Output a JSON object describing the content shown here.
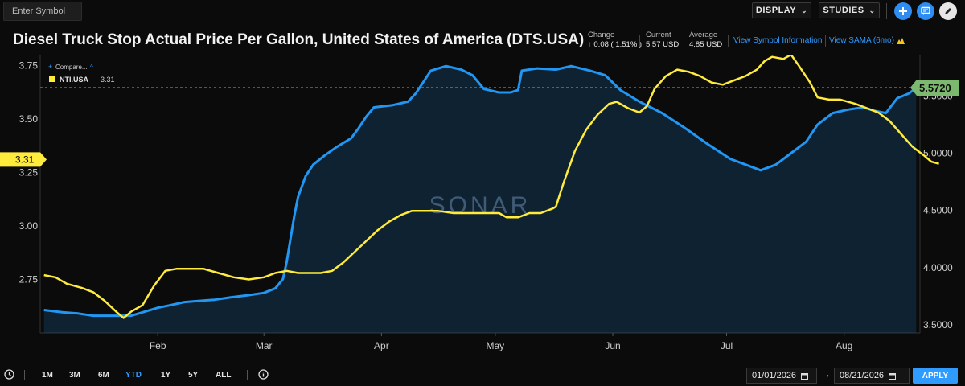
{
  "toolbar": {
    "symbol_placeholder": "Enter Symbol",
    "display_label": "DISPLAY",
    "studies_label": "STUDIES"
  },
  "header": {
    "title": "Diesel Truck Stop Actual Price Per Gallon, United States of America (DTS.USA)",
    "change_label": "Change",
    "change_value": "0.08 ( 1.51% )",
    "current_label": "Current",
    "current_value": "5.57 USD",
    "average_label": "Average",
    "average_value": "4.85 USD",
    "link_symbol_info": "View Symbol Information",
    "link_sama": "View SAMA (6mo)"
  },
  "legend": {
    "compare_label": "Compare...",
    "series_name": "NTI.USA",
    "series_value": "3.31"
  },
  "watermark": "SONAR",
  "bottom": {
    "ranges": [
      "1M",
      "3M",
      "6M",
      "YTD",
      "1Y",
      "5Y",
      "ALL"
    ],
    "active_range": "YTD",
    "start_date": "01/01/2026",
    "end_date": "08/21/2026",
    "arrow": "→",
    "apply_label": "APPLY"
  },
  "colors": {
    "primary_series": "#2196f3",
    "compare_series": "#ffeb3b",
    "current_badge": "#7cb96f",
    "accent": "#2f9bff"
  },
  "chart_data": {
    "type": "line",
    "x_labels": [
      "Feb",
      "Mar",
      "Apr",
      "May",
      "Jun",
      "Jul",
      "Aug"
    ],
    "x_label_days": [
      31,
      59,
      90,
      120,
      151,
      181,
      212
    ],
    "xlim_days": [
      0,
      232
    ],
    "left_axis": {
      "ticks": [
        "2.75",
        "3.00",
        "3.25",
        "3.50",
        "3.75"
      ],
      "ylim": [
        2.5,
        3.8
      ]
    },
    "right_axis": {
      "ticks": [
        "3.5000",
        "4.0000",
        "4.5000",
        "5.0000",
        "5.5000"
      ],
      "ylim": [
        3.43,
        5.86
      ]
    },
    "grid": false,
    "current_marker": {
      "value": 5.572,
      "label": "5.5720"
    },
    "compare_marker": {
      "value": 3.31,
      "label": "3.31"
    },
    "series": [
      {
        "name": "DTS.USA",
        "axis": "right",
        "style": "area",
        "points": [
          [
            1,
            3.63
          ],
          [
            6,
            3.61
          ],
          [
            10,
            3.6
          ],
          [
            14,
            3.58
          ],
          [
            18,
            3.58
          ],
          [
            24,
            3.58
          ],
          [
            28,
            3.62
          ],
          [
            31,
            3.65
          ],
          [
            34,
            3.67
          ],
          [
            38,
            3.7
          ],
          [
            42,
            3.71
          ],
          [
            46,
            3.72
          ],
          [
            50,
            3.74
          ],
          [
            55,
            3.76
          ],
          [
            59,
            3.78
          ],
          [
            62,
            3.82
          ],
          [
            64,
            3.9
          ],
          [
            65,
            4.05
          ],
          [
            66,
            4.25
          ],
          [
            67,
            4.45
          ],
          [
            68,
            4.62
          ],
          [
            70,
            4.8
          ],
          [
            72,
            4.9
          ],
          [
            75,
            4.98
          ],
          [
            78,
            5.05
          ],
          [
            82,
            5.13
          ],
          [
            84,
            5.22
          ],
          [
            86,
            5.32
          ],
          [
            88,
            5.4
          ],
          [
            93,
            5.42
          ],
          [
            97,
            5.45
          ],
          [
            99,
            5.52
          ],
          [
            101,
            5.62
          ],
          [
            103,
            5.72
          ],
          [
            107,
            5.76
          ],
          [
            111,
            5.73
          ],
          [
            114,
            5.68
          ],
          [
            117,
            5.56
          ],
          [
            121,
            5.53
          ],
          [
            124,
            5.53
          ],
          [
            126,
            5.55
          ],
          [
            127,
            5.72
          ],
          [
            131,
            5.74
          ],
          [
            136,
            5.73
          ],
          [
            140,
            5.76
          ],
          [
            145,
            5.72
          ],
          [
            149,
            5.68
          ],
          [
            153,
            5.55
          ],
          [
            158,
            5.45
          ],
          [
            164,
            5.35
          ],
          [
            170,
            5.22
          ],
          [
            176,
            5.08
          ],
          [
            182,
            4.95
          ],
          [
            186,
            4.9
          ],
          [
            190,
            4.85
          ],
          [
            194,
            4.9
          ],
          [
            198,
            5.0
          ],
          [
            202,
            5.1
          ],
          [
            205,
            5.25
          ],
          [
            209,
            5.35
          ],
          [
            213,
            5.38
          ],
          [
            217,
            5.4
          ],
          [
            220,
            5.37
          ],
          [
            223,
            5.35
          ],
          [
            226,
            5.48
          ],
          [
            229,
            5.52
          ],
          [
            231,
            5.57
          ]
        ]
      },
      {
        "name": "NTI.USA",
        "axis": "left",
        "style": "line",
        "points": [
          [
            1,
            2.77
          ],
          [
            4,
            2.76
          ],
          [
            7,
            2.73
          ],
          [
            11,
            2.71
          ],
          [
            14,
            2.69
          ],
          [
            17,
            2.65
          ],
          [
            20,
            2.6
          ],
          [
            22,
            2.57
          ],
          [
            24,
            2.6
          ],
          [
            27,
            2.63
          ],
          [
            30,
            2.72
          ],
          [
            33,
            2.79
          ],
          [
            36,
            2.8
          ],
          [
            39,
            2.8
          ],
          [
            43,
            2.8
          ],
          [
            47,
            2.78
          ],
          [
            51,
            2.76
          ],
          [
            55,
            2.75
          ],
          [
            59,
            2.76
          ],
          [
            62,
            2.78
          ],
          [
            65,
            2.79
          ],
          [
            68,
            2.78
          ],
          [
            71,
            2.78
          ],
          [
            74,
            2.78
          ],
          [
            77,
            2.79
          ],
          [
            80,
            2.83
          ],
          [
            83,
            2.88
          ],
          [
            86,
            2.93
          ],
          [
            89,
            2.98
          ],
          [
            92,
            3.02
          ],
          [
            95,
            3.05
          ],
          [
            98,
            3.07
          ],
          [
            101,
            3.07
          ],
          [
            105,
            3.07
          ],
          [
            109,
            3.06
          ],
          [
            113,
            3.06
          ],
          [
            117,
            3.06
          ],
          [
            121,
            3.06
          ],
          [
            123,
            3.04
          ],
          [
            126,
            3.04
          ],
          [
            129,
            3.06
          ],
          [
            132,
            3.06
          ],
          [
            135,
            3.08
          ],
          [
            136,
            3.09
          ],
          [
            138,
            3.2
          ],
          [
            141,
            3.35
          ],
          [
            144,
            3.45
          ],
          [
            147,
            3.52
          ],
          [
            150,
            3.57
          ],
          [
            152,
            3.58
          ],
          [
            155,
            3.55
          ],
          [
            158,
            3.53
          ],
          [
            160,
            3.56
          ],
          [
            162,
            3.64
          ],
          [
            165,
            3.7
          ],
          [
            168,
            3.73
          ],
          [
            171,
            3.72
          ],
          [
            174,
            3.7
          ],
          [
            177,
            3.67
          ],
          [
            180,
            3.66
          ],
          [
            183,
            3.68
          ],
          [
            186,
            3.7
          ],
          [
            189,
            3.73
          ],
          [
            191,
            3.77
          ],
          [
            193,
            3.79
          ],
          [
            196,
            3.78
          ],
          [
            198,
            3.8
          ],
          [
            200,
            3.75
          ],
          [
            203,
            3.67
          ],
          [
            205,
            3.6
          ],
          [
            208,
            3.59
          ],
          [
            211,
            3.59
          ],
          [
            215,
            3.57
          ],
          [
            218,
            3.55
          ],
          [
            221,
            3.53
          ],
          [
            224,
            3.49
          ],
          [
            227,
            3.43
          ],
          [
            230,
            3.37
          ],
          [
            233,
            3.33
          ],
          [
            235,
            3.3
          ],
          [
            237,
            3.29
          ]
        ]
      }
    ]
  }
}
